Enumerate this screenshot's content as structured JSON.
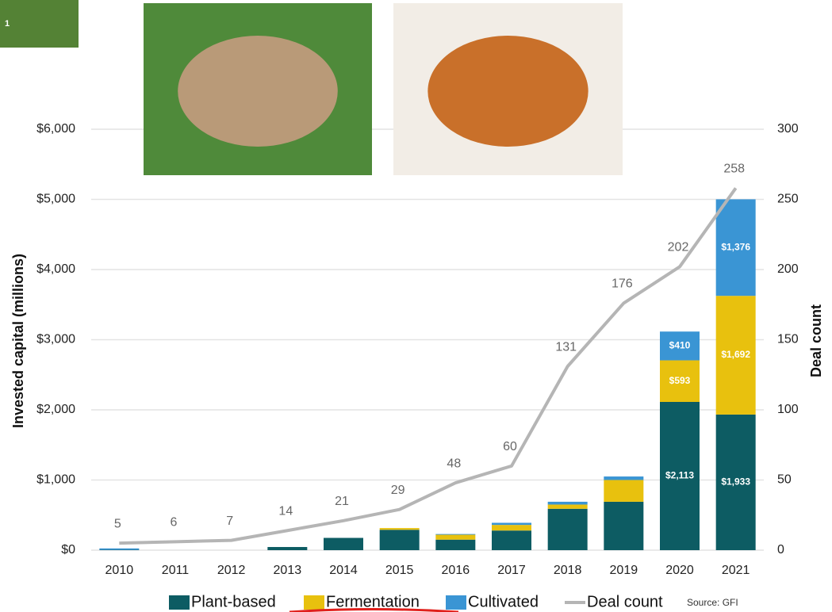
{
  "slide_badge": "1",
  "chart_data": {
    "type": "bar",
    "stacked": true,
    "y_label": "Invested capital (millions)",
    "y2_label": "Deal count",
    "source": "Source: GFI",
    "categories": [
      "2010",
      "2011",
      "2012",
      "2013",
      "2014",
      "2015",
      "2016",
      "2017",
      "2018",
      "2019",
      "2020",
      "2021"
    ],
    "series": [
      {
        "name": "Plant-based",
        "color": "#0d5c63",
        "values": [
          5,
          0,
          0,
          45,
          175,
          290,
          150,
          280,
          590,
          690,
          2113,
          1933
        ],
        "value_labels": [
          null,
          null,
          null,
          null,
          null,
          null,
          null,
          null,
          null,
          null,
          "$2,113",
          "$1,933"
        ]
      },
      {
        "name": "Fermentation",
        "color": "#e8c10e",
        "values": [
          0,
          0,
          0,
          0,
          0,
          25,
          70,
          80,
          60,
          310,
          593,
          1692
        ],
        "value_labels": [
          null,
          null,
          null,
          null,
          null,
          null,
          null,
          null,
          null,
          null,
          "$593",
          "$1,692"
        ]
      },
      {
        "name": "Cultivated",
        "color": "#3a95d4",
        "values": [
          20,
          0,
          0,
          0,
          0,
          0,
          10,
          30,
          40,
          50,
          410,
          1376
        ],
        "value_labels": [
          null,
          null,
          null,
          null,
          null,
          null,
          null,
          null,
          null,
          null,
          "$410",
          "$1,376"
        ]
      },
      {
        "name": "Deal count",
        "type": "line",
        "axis": "y2",
        "color": "#b5b5b5",
        "values": [
          5,
          6,
          7,
          14,
          21,
          29,
          48,
          60,
          131,
          176,
          202,
          258
        ]
      }
    ],
    "ylim": [
      0,
      6000
    ],
    "yticks": [
      {
        "value": 0,
        "label": "$0"
      },
      {
        "value": 1000,
        "label": "$1,000"
      },
      {
        "value": 2000,
        "label": "$2,000"
      },
      {
        "value": 3000,
        "label": "$3,000"
      },
      {
        "value": 4000,
        "label": "$4,000"
      },
      {
        "value": 5000,
        "label": "$5,000"
      },
      {
        "value": 6000,
        "label": "$6,000"
      }
    ],
    "y2lim": [
      0,
      300
    ],
    "y2ticks": [
      0,
      50,
      100,
      150,
      200,
      250,
      300
    ],
    "grid": true
  }
}
